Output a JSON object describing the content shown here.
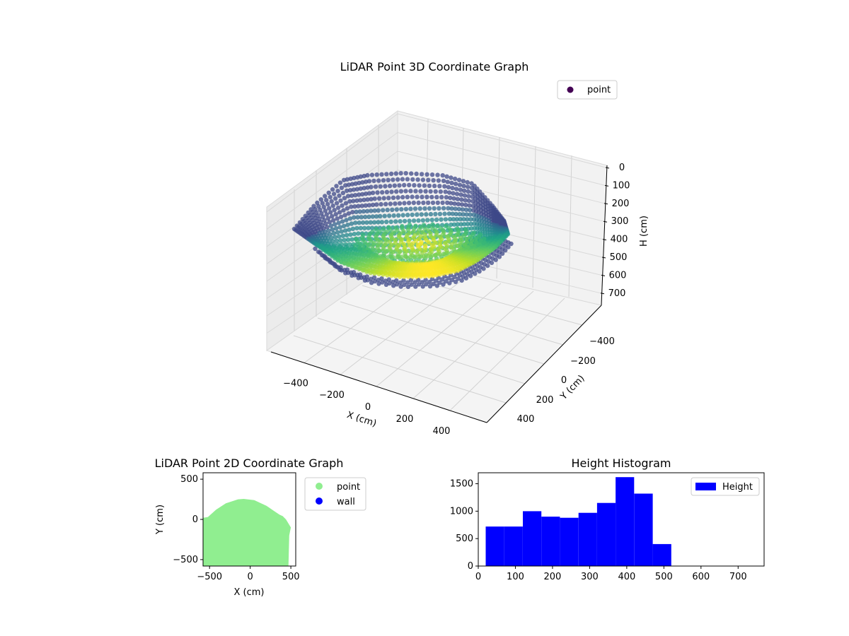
{
  "chart_data": [
    {
      "type": "scatter3d",
      "title": "LiDAR Point 3D Coordinate Graph",
      "xlabel": "X (cm)",
      "ylabel": "Y (cm)",
      "zlabel": "H (cm)",
      "xlim": [
        -550,
        550
      ],
      "ylim": [
        -550,
        550
      ],
      "zlim": [
        750,
        0
      ],
      "xticks": [
        "−400",
        "−200",
        "0",
        "200",
        "400"
      ],
      "yticks": [
        "−400",
        "−200",
        "0",
        "200",
        "400"
      ],
      "zticks": [
        "0",
        "100",
        "200",
        "300",
        "400",
        "500",
        "600",
        "700"
      ],
      "colormap": "viridis",
      "legend": {
        "label": "point",
        "color": "#440154",
        "placement": "top-right"
      },
      "grid": true
    },
    {
      "type": "scatter",
      "title": "LiDAR Point 2D Coordinate Graph",
      "xlabel": "X (cm)",
      "ylabel": "Y (cm)",
      "xlim": [
        -580,
        560
      ],
      "ylim": [
        -580,
        580
      ],
      "xticks": [
        "−500",
        "0",
        "500"
      ],
      "yticks": [
        "500",
        "0",
        "−500"
      ],
      "series": [
        {
          "name": "point",
          "color": "#90ee90"
        },
        {
          "name": "wall",
          "color": "#0000ff"
        }
      ],
      "legend_placement": "outside right"
    },
    {
      "type": "bar",
      "title": "Height Histogram",
      "xlim": [
        0,
        770
      ],
      "ylim": [
        0,
        1700
      ],
      "xticks": [
        "0",
        "100",
        "200",
        "300",
        "400",
        "500",
        "600",
        "700"
      ],
      "yticks": [
        "0",
        "500",
        "1000",
        "1500"
      ],
      "bin_edges": [
        20,
        70,
        120,
        170,
        220,
        270,
        320,
        370,
        420,
        470,
        520
      ],
      "values": [
        720,
        720,
        1000,
        900,
        880,
        970,
        1150,
        1620,
        1320,
        400,
        0
      ],
      "series": [
        {
          "name": "Height",
          "color": "#0000ff"
        }
      ],
      "legend_placement": "top-right"
    }
  ]
}
